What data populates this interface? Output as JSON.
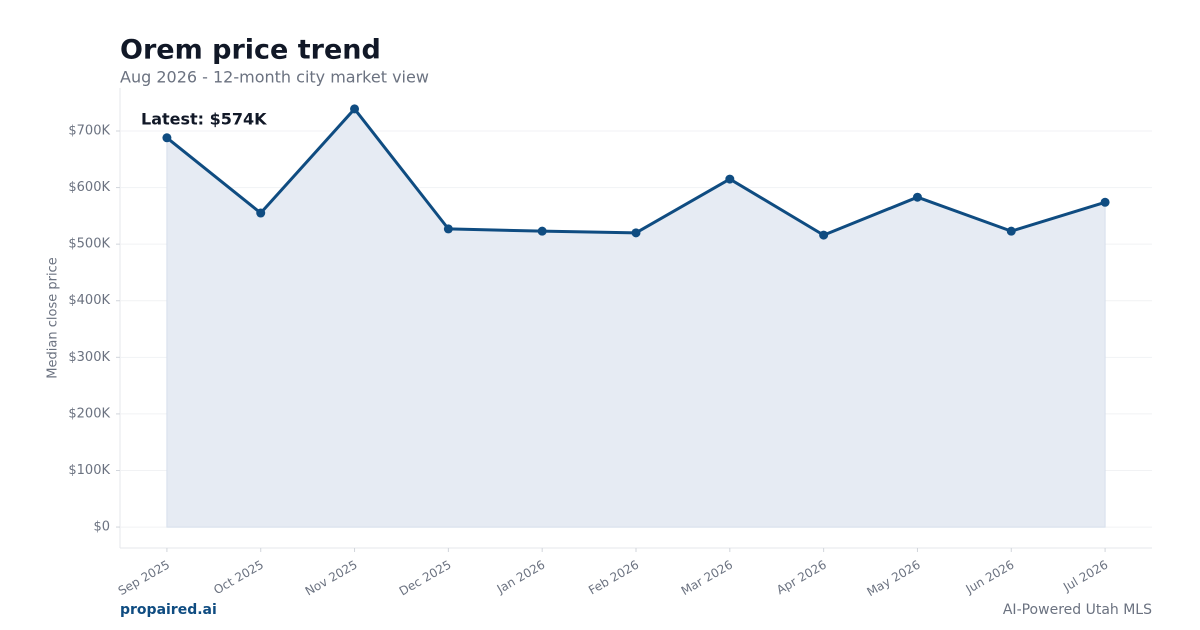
{
  "chart_data": {
    "type": "line",
    "title": "Orem price trend",
    "subtitle": "Aug 2026 - 12-month city market view",
    "y_label": "Median close price",
    "categories": [
      "Sep 2025",
      "Oct 2025",
      "Nov 2025",
      "Dec 2025",
      "Jan 2026",
      "Feb 2026",
      "Mar 2026",
      "Apr 2026",
      "May 2026",
      "Jun 2026",
      "Jul 2026"
    ],
    "values": [
      688000,
      555000,
      739000,
      527000,
      523000,
      520000,
      615000,
      516000,
      583000,
      523000,
      574000
    ],
    "color": "#0f4c81",
    "area_color": "#e6ebf3",
    "ylim": [
      -37000,
      776000
    ],
    "yticks": [
      {
        "value": 0,
        "label": "$0"
      },
      {
        "value": 100000,
        "label": "$100K"
      },
      {
        "value": 200000,
        "label": "$200K"
      },
      {
        "value": 300000,
        "label": "$300K"
      },
      {
        "value": 400000,
        "label": "$400K"
      },
      {
        "value": 500000,
        "label": "$500K"
      },
      {
        "value": 600000,
        "label": "$600K"
      },
      {
        "value": 700000,
        "label": "$700K"
      }
    ],
    "grid": true,
    "annotation": "Latest: $574K"
  },
  "footer": {
    "brand": "propaired.ai",
    "tagline": "AI-Powered Utah MLS"
  }
}
